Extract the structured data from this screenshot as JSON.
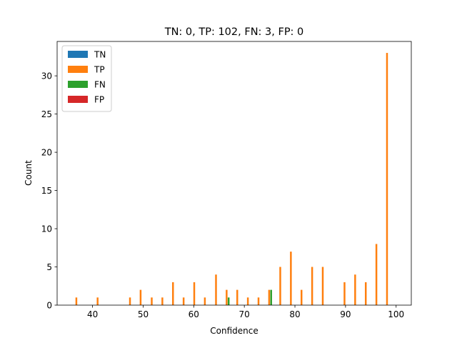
{
  "chart_data": {
    "type": "bar",
    "title": "TN: 0, TP: 102, FN: 3, FP: 0",
    "xlabel": "Confidence",
    "ylabel": "Count",
    "xlim": [
      33,
      103
    ],
    "ylim": [
      0,
      34.5
    ],
    "xticks": [
      40,
      50,
      60,
      70,
      80,
      90,
      100
    ],
    "yticks": [
      0,
      5,
      10,
      15,
      20,
      25,
      30
    ],
    "grid": false,
    "legend_position": "top-left",
    "bar_width": 0.35,
    "series": [
      {
        "name": "TN",
        "color": "#1f77b4",
        "points": []
      },
      {
        "name": "TP",
        "color": "#ff7f0e",
        "points": [
          [
            36.8,
            1
          ],
          [
            41.0,
            1
          ],
          [
            47.4,
            1
          ],
          [
            49.5,
            2
          ],
          [
            51.7,
            1
          ],
          [
            53.8,
            1
          ],
          [
            55.9,
            3
          ],
          [
            58.0,
            1
          ],
          [
            60.1,
            3
          ],
          [
            62.2,
            1
          ],
          [
            64.4,
            4
          ],
          [
            66.5,
            2
          ],
          [
            68.6,
            2
          ],
          [
            70.7,
            1
          ],
          [
            72.8,
            1
          ],
          [
            74.9,
            2
          ],
          [
            77.1,
            5
          ],
          [
            79.2,
            7
          ],
          [
            81.3,
            2
          ],
          [
            83.4,
            5
          ],
          [
            85.5,
            5
          ],
          [
            89.8,
            3
          ],
          [
            91.9,
            4
          ],
          [
            94.0,
            3
          ],
          [
            96.1,
            8
          ],
          [
            98.2,
            33
          ]
        ]
      },
      {
        "name": "FN",
        "color": "#2ca02c",
        "points": [
          [
            66.9,
            1
          ],
          [
            75.3,
            2
          ]
        ]
      },
      {
        "name": "FP",
        "color": "#d62728",
        "points": []
      }
    ]
  }
}
